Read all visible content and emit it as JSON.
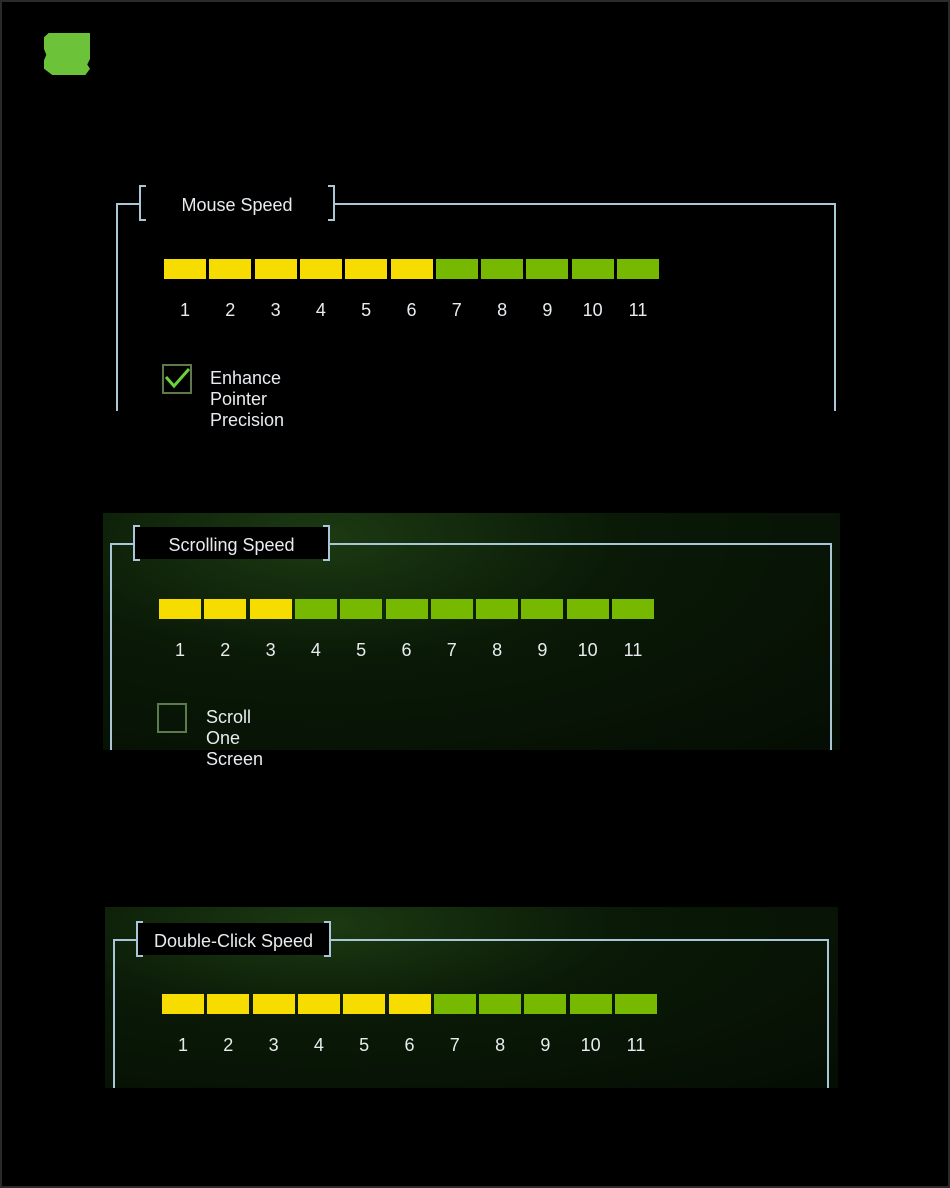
{
  "logo": "razer-logo",
  "colors": {
    "active": "#f7dc00",
    "inactive": "#76b900",
    "frame": "#a9c7d6"
  },
  "mouse_speed": {
    "title": "Mouse Speed",
    "value": 6,
    "ticks": [
      "1",
      "2",
      "3",
      "4",
      "5",
      "6",
      "7",
      "8",
      "9",
      "10",
      "11"
    ],
    "checkbox_label": "Enhance Pointer Precision",
    "checked": true
  },
  "scrolling_speed": {
    "title": "Scrolling Speed",
    "value": 3,
    "ticks": [
      "1",
      "2",
      "3",
      "4",
      "5",
      "6",
      "7",
      "8",
      "9",
      "10",
      "11"
    ],
    "checkbox_label": "Scroll One Screen",
    "checked": false
  },
  "double_click_speed": {
    "title": "Double-Click Speed",
    "value": 6,
    "ticks": [
      "1",
      "2",
      "3",
      "4",
      "5",
      "6",
      "7",
      "8",
      "9",
      "10",
      "11"
    ]
  }
}
